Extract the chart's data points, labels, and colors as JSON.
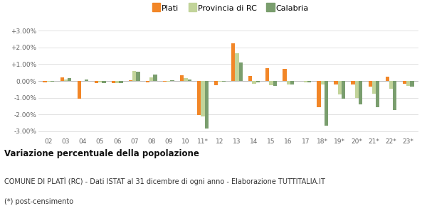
{
  "years": [
    "02",
    "03",
    "04",
    "05",
    "06",
    "07",
    "08",
    "09",
    "10",
    "11*",
    "12",
    "13",
    "14",
    "15",
    "16",
    "17",
    "18*",
    "19*",
    "20*",
    "21*",
    "22*",
    "23*"
  ],
  "plati": [
    -0.1,
    0.2,
    -1.05,
    -0.12,
    -0.12,
    0.05,
    -0.1,
    -0.05,
    0.35,
    -2.05,
    -0.25,
    2.25,
    0.3,
    0.75,
    0.7,
    0.0,
    -1.55,
    -0.2,
    -0.2,
    -0.35,
    0.25,
    -0.15
  ],
  "provincia": [
    -0.05,
    0.1,
    0.0,
    -0.1,
    -0.12,
    0.6,
    0.2,
    -0.05,
    0.18,
    -2.1,
    -0.05,
    1.65,
    -0.15,
    -0.25,
    -0.22,
    -0.1,
    -0.2,
    -0.8,
    -1.0,
    -0.75,
    -0.45,
    -0.28
  ],
  "calabria": [
    -0.05,
    0.18,
    0.1,
    -0.12,
    -0.12,
    0.55,
    0.4,
    0.05,
    0.1,
    -2.85,
    -0.05,
    1.1,
    -0.1,
    -0.28,
    -0.22,
    -0.1,
    -2.65,
    -1.05,
    -1.4,
    -1.55,
    -1.75,
    -0.35
  ],
  "color_plati": "#f28627",
  "color_provincia": "#c2d49a",
  "color_calabria": "#7a9e6e",
  "title": "Variazione percentuale della popolazione",
  "subtitle": "COMUNE DI PLATÌ (RC) - Dati ISTAT al 31 dicembre di ogni anno - Elaborazione TUTTITALIA.IT",
  "footnote": "(*) post-censimento",
  "bg_color": "#ffffff",
  "plot_bg": "#ffffff",
  "ylim": [
    -3.3,
    3.3
  ],
  "yticks": [
    -3.0,
    -2.0,
    -1.0,
    0.0,
    1.0,
    2.0,
    3.0
  ]
}
